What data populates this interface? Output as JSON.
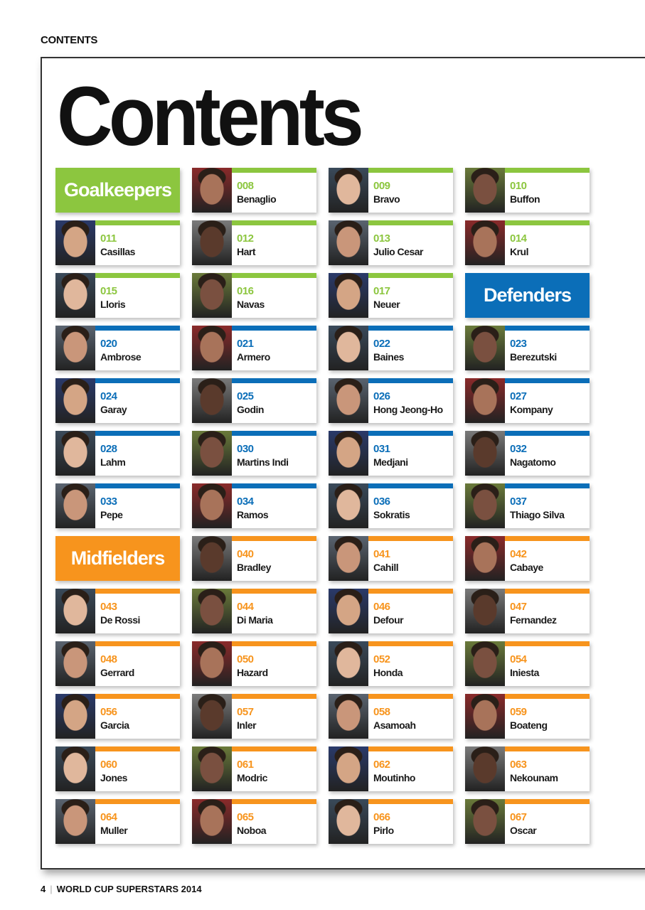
{
  "running_head": "CONTENTS",
  "title": "Contents",
  "colors": {
    "goalkeepers": "#8cc63f",
    "defenders": "#0b6eb8",
    "midfielders": "#f7941d"
  },
  "grid": [
    {
      "type": "header",
      "label": "Goalkeepers",
      "group": "goalkeepers"
    },
    {
      "num": "008",
      "name": "Benaglio",
      "group": "goalkeepers"
    },
    {
      "num": "009",
      "name": "Bravo",
      "group": "goalkeepers"
    },
    {
      "num": "010",
      "name": "Buffon",
      "group": "goalkeepers"
    },
    {
      "num": "011",
      "name": "Casillas",
      "group": "goalkeepers"
    },
    {
      "num": "012",
      "name": "Hart",
      "group": "goalkeepers"
    },
    {
      "num": "013",
      "name": "Julio Cesar",
      "group": "goalkeepers"
    },
    {
      "num": "014",
      "name": "Krul",
      "group": "goalkeepers"
    },
    {
      "num": "015",
      "name": "Lloris",
      "group": "goalkeepers"
    },
    {
      "num": "016",
      "name": "Navas",
      "group": "goalkeepers"
    },
    {
      "num": "017",
      "name": "Neuer",
      "group": "goalkeepers"
    },
    {
      "type": "header",
      "label": "Defenders",
      "group": "defenders"
    },
    {
      "num": "020",
      "name": "Ambrose",
      "group": "defenders"
    },
    {
      "num": "021",
      "name": "Armero",
      "group": "defenders"
    },
    {
      "num": "022",
      "name": "Baines",
      "group": "defenders"
    },
    {
      "num": "023",
      "name": "Berezutski",
      "group": "defenders"
    },
    {
      "num": "024",
      "name": "Garay",
      "group": "defenders"
    },
    {
      "num": "025",
      "name": "Godin",
      "group": "defenders"
    },
    {
      "num": "026",
      "name": "Hong Jeong-Ho",
      "group": "defenders"
    },
    {
      "num": "027",
      "name": "Kompany",
      "group": "defenders"
    },
    {
      "num": "028",
      "name": "Lahm",
      "group": "defenders"
    },
    {
      "num": "030",
      "name": "Martins Indi",
      "group": "defenders"
    },
    {
      "num": "031",
      "name": "Medjani",
      "group": "defenders"
    },
    {
      "num": "032",
      "name": "Nagatomo",
      "group": "defenders"
    },
    {
      "num": "033",
      "name": "Pepe",
      "group": "defenders"
    },
    {
      "num": "034",
      "name": "Ramos",
      "group": "defenders"
    },
    {
      "num": "036",
      "name": "Sokratis",
      "group": "defenders"
    },
    {
      "num": "037",
      "name": "Thiago Silva",
      "group": "defenders"
    },
    {
      "type": "header",
      "label": "Midfielders",
      "group": "midfielders"
    },
    {
      "num": "040",
      "name": "Bradley",
      "group": "midfielders"
    },
    {
      "num": "041",
      "name": "Cahill",
      "group": "midfielders"
    },
    {
      "num": "042",
      "name": "Cabaye",
      "group": "midfielders"
    },
    {
      "num": "043",
      "name": "De Rossi",
      "group": "midfielders"
    },
    {
      "num": "044",
      "name": "Di Maria",
      "group": "midfielders"
    },
    {
      "num": "046",
      "name": "Defour",
      "group": "midfielders"
    },
    {
      "num": "047",
      "name": "Fernandez",
      "group": "midfielders"
    },
    {
      "num": "048",
      "name": "Gerrard",
      "group": "midfielders"
    },
    {
      "num": "050",
      "name": "Hazard",
      "group": "midfielders"
    },
    {
      "num": "052",
      "name": "Honda",
      "group": "midfielders"
    },
    {
      "num": "054",
      "name": "Iniesta",
      "group": "midfielders"
    },
    {
      "num": "056",
      "name": "Garcia",
      "group": "midfielders"
    },
    {
      "num": "057",
      "name": "Inler",
      "group": "midfielders"
    },
    {
      "num": "058",
      "name": "Asamoah",
      "group": "midfielders"
    },
    {
      "num": "059",
      "name": "Boateng",
      "group": "midfielders"
    },
    {
      "num": "060",
      "name": "Jones",
      "group": "midfielders"
    },
    {
      "num": "061",
      "name": "Modric",
      "group": "midfielders"
    },
    {
      "num": "062",
      "name": "Moutinho",
      "group": "midfielders"
    },
    {
      "num": "063",
      "name": "Nekounam",
      "group": "midfielders"
    },
    {
      "num": "064",
      "name": "Muller",
      "group": "midfielders"
    },
    {
      "num": "065",
      "name": "Noboa",
      "group": "midfielders"
    },
    {
      "num": "066",
      "name": "Pirlo",
      "group": "midfielders"
    },
    {
      "num": "067",
      "name": "Oscar",
      "group": "midfielders"
    }
  ],
  "footer": {
    "page": "4",
    "publication": "WORLD CUP SUPERSTARS 2014"
  }
}
